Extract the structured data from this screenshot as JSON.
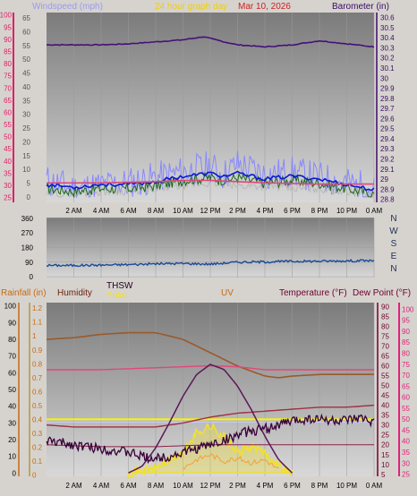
{
  "header": {
    "windspeed_label": "Windspeed (mph)",
    "graph_day_label": "24 hour graph day",
    "date_label": "Mar 10, 2026",
    "barometer_label": "Barometer (in)"
  },
  "colors": {
    "background": "#d6d3ce",
    "plot_top": "#7b7b7b",
    "plot_bottom": "#cfcfcf",
    "axis_pink": "#e0206a",
    "axis_purple": "#3a0a68",
    "axis_orange": "#c86a10",
    "axis_yellow_dark": "#a07800",
    "axis_maroon": "#6e0030",
    "axis_magenta": "#e0207a",
    "title_yellow": "#f0d000",
    "title_red": "#d02020",
    "wind_gust": "#8888ff",
    "wind_avg": "#0a1ad0",
    "wind_green": "#1b6a1b",
    "wind_gray": "#b8b8b8",
    "barometer": "#45107a",
    "temp_pink": "#e04878",
    "humidity": "#9a5a2a",
    "thsw": "#380038",
    "dewpoint": "#a03040",
    "uv": "#5a1858",
    "solar": "#f0e030",
    "rain": "#f8f800",
    "direction": "#1a4a9a",
    "text_dark": "#000000",
    "tick_text": "#ffffff"
  },
  "chart_data": [
    {
      "type": "line",
      "title": "24 hour graph day",
      "x_ticks": [
        "2 AM",
        "4 AM",
        "6 AM",
        "8 AM",
        "10 AM",
        "12 PM",
        "2 PM",
        "4 PM",
        "6 PM",
        "8 PM",
        "10 PM",
        "0 AM"
      ],
      "left_axis": {
        "label": "Windspeed (mph)",
        "ticks": [
          "25",
          "30",
          "35",
          "40",
          "45",
          "50",
          "55",
          "60",
          "65",
          "70",
          "75",
          "80",
          "85",
          "90",
          "95",
          "100"
        ],
        "ylim": [
          23,
          101
        ]
      },
      "left_axis_inner": {
        "ticks": [
          "0",
          "5",
          "10",
          "15",
          "20",
          "25",
          "30",
          "35",
          "40",
          "45",
          "50",
          "55",
          "60",
          "65"
        ],
        "ylim": [
          -2,
          67
        ]
      },
      "right_axis": {
        "label": "Barometer (in)",
        "ticks": [
          "28.8",
          "28.9",
          "29",
          "29.1",
          "29.2",
          "29.3",
          "29.4",
          "29.5",
          "29.6",
          "29.7",
          "29.8",
          "29.9",
          "30",
          "30.1",
          "30.2",
          "30.3",
          "30.4",
          "30.5",
          "30.6"
        ],
        "ylim": [
          28.77,
          30.65
        ]
      },
      "series": [
        {
          "name": "Barometer (in)",
          "axis": "right",
          "x": [
            0,
            2,
            4,
            6,
            8,
            10,
            11.5,
            13,
            14,
            16,
            18,
            20,
            22,
            24
          ],
          "values": [
            30.33,
            30.33,
            30.33,
            30.34,
            30.36,
            30.38,
            30.41,
            30.36,
            30.33,
            30.31,
            30.33,
            30.37,
            30.34,
            30.31
          ]
        },
        {
          "name": "temperature",
          "axis": "left",
          "x": [
            0,
            4,
            8,
            10,
            12,
            14,
            16,
            20,
            24
          ],
          "values": [
            31,
            31,
            31.5,
            32,
            32,
            31.5,
            31,
            30.5,
            30.5
          ]
        },
        {
          "x": [
            0,
            2,
            4,
            6,
            8,
            10,
            12,
            13,
            14,
            15,
            16,
            18,
            20,
            22,
            23,
            24
          ],
          "values": [
            6,
            3,
            4,
            5,
            7,
            9,
            11,
            8,
            12,
            10,
            8,
            9,
            7,
            5,
            4,
            2
          ]
        },
        {
          "x": [
            0,
            2,
            4,
            6,
            8,
            10,
            12,
            13,
            14,
            16,
            18,
            20,
            22,
            24
          ],
          "values": [
            3,
            2,
            3,
            3,
            4,
            6,
            7,
            6,
            7,
            5,
            6,
            5,
            3,
            1
          ]
        },
        {
          "x": [
            0,
            2,
            4,
            6,
            8,
            10,
            12,
            14,
            16,
            18,
            20,
            22,
            24
          ],
          "values": [
            1,
            1,
            2,
            2,
            3,
            4,
            5,
            4,
            4,
            3,
            3,
            2,
            1
          ]
        }
      ]
    },
    {
      "type": "line",
      "x_ticks": [
        "2 AM",
        "4 AM",
        "6 AM",
        "8 AM",
        "10 AM",
        "12 PM",
        "2 PM",
        "4 PM",
        "6 PM",
        "8 PM",
        "10 PM",
        "0 AM"
      ],
      "left_axis": {
        "ticks": [
          "0",
          "90",
          "180",
          "270",
          "360"
        ],
        "ylim": [
          -5,
          365
        ]
      },
      "right_labels": [
        "N",
        "W",
        "S",
        "E",
        "N"
      ],
      "series": [
        {
          "x": [
            0,
            2,
            4,
            6,
            8,
            10,
            12,
            14,
            16,
            18,
            20,
            22,
            24
          ],
          "values": [
            70,
            70,
            72,
            75,
            80,
            82,
            78,
            90,
            92,
            95,
            96,
            98,
            100
          ]
        }
      ]
    },
    {
      "type": "line",
      "x_ticks": [
        "2 AM",
        "4 AM",
        "6 AM",
        "8 AM",
        "10 AM",
        "12 PM",
        "2 PM",
        "4 PM",
        "6 PM",
        "8 PM",
        "10 PM",
        "0 AM"
      ],
      "titles": {
        "rainfall": "Rainfall (in)",
        "humidity": "Humidity",
        "thsw": "THSW",
        "solar": "Solar",
        "uv": "UV",
        "temperature": "Temperature (°F)",
        "dewpoint": "Dew Point (°F)"
      },
      "axis_humidity": {
        "ticks": [
          "0",
          "10",
          "20",
          "30",
          "40",
          "50",
          "60",
          "70",
          "80",
          "90",
          "100"
        ],
        "ylim": [
          -2,
          102
        ]
      },
      "axis_rain": {
        "ticks": [
          "0",
          "0.1",
          "0.2",
          "0.3",
          "0.4",
          "0.5",
          "0.6",
          "0.7",
          "0.8",
          "0.9",
          "1",
          "1.1",
          "1.2"
        ],
        "ylim": [
          -0.01,
          1.24
        ]
      },
      "axis_uv": {
        "ticks": [
          "0",
          "1",
          "2",
          "3",
          "4",
          "5",
          "6",
          "7",
          "8",
          "9"
        ],
        "ylim": [
          -0.2,
          10.2
        ]
      },
      "axis_temp": {
        "ticks": [
          "5",
          "10",
          "15",
          "20",
          "25",
          "30",
          "35",
          "40",
          "45",
          "50",
          "55",
          "60",
          "65",
          "70",
          "75",
          "80",
          "85",
          "90"
        ],
        "ylim": [
          4,
          92
        ]
      },
      "axis_dew": {
        "ticks": [
          "25",
          "30",
          "35",
          "40",
          "45",
          "50",
          "55",
          "60",
          "65",
          "70",
          "75",
          "80",
          "85",
          "90",
          "95",
          "100"
        ],
        "ylim": [
          24,
          103
        ]
      },
      "series": [
        {
          "name": "Humidity",
          "axis": "humidity",
          "x": [
            0,
            2,
            4,
            6,
            8,
            10,
            11,
            12,
            13,
            14,
            15,
            16,
            17,
            18,
            20,
            22,
            24
          ],
          "values": [
            80,
            81,
            83,
            84,
            84,
            80,
            76,
            72,
            68,
            64,
            61,
            58,
            57,
            58,
            59,
            59,
            59
          ]
        },
        {
          "name": "Temperature (°F)",
          "axis": "temp",
          "x": [
            0,
            2,
            4,
            6,
            8,
            10,
            12,
            14,
            16,
            18,
            20,
            22,
            24
          ],
          "values": [
            58,
            58,
            58,
            58.5,
            59,
            59.5,
            60,
            59.5,
            58,
            58,
            58,
            58,
            58
          ]
        },
        {
          "name": "Dew Point (°F)",
          "axis": "temp",
          "x": [
            0,
            2,
            4,
            6,
            8,
            10,
            12,
            14,
            16,
            18,
            20,
            22,
            24
          ],
          "values": [
            30,
            29,
            29,
            29,
            29,
            31,
            34,
            36,
            37,
            38,
            39,
            39,
            40
          ]
        },
        {
          "name": "THSW",
          "axis": "temp",
          "x": [
            0,
            1,
            2,
            3,
            4,
            5,
            6,
            7,
            8,
            9,
            10,
            11,
            12,
            13,
            14,
            15,
            16,
            17,
            18,
            19,
            20,
            21,
            22,
            23,
            24
          ],
          "values": [
            22,
            21,
            20,
            19,
            18,
            17,
            16,
            14,
            13,
            14,
            16,
            18,
            20,
            22,
            25,
            27,
            28,
            30,
            32,
            33,
            33,
            32,
            32,
            33,
            32
          ]
        },
        {
          "name": "UV",
          "axis": "uv",
          "x": [
            6,
            7,
            8,
            9,
            10,
            11,
            12,
            13,
            14,
            15,
            16,
            17,
            18
          ],
          "values": [
            0,
            0.4,
            1.5,
            3,
            4.6,
            5.9,
            6.5,
            6.2,
            5.2,
            3.8,
            2.2,
            0.8,
            0
          ]
        },
        {
          "name": "Solar",
          "axis": "uv",
          "x": [
            6,
            8,
            10,
            11,
            12,
            13,
            14,
            15,
            16,
            17,
            18
          ],
          "values": [
            0,
            0.3,
            1.2,
            2.4,
            2.8,
            2.2,
            1.2,
            1.6,
            1.2,
            0.5,
            0
          ]
        },
        {
          "name": "Rainfall (in)",
          "axis": "rain",
          "x": [
            0,
            24
          ],
          "values": [
            0.4,
            0.4
          ]
        },
        {
          "name": "Rainfall (in)",
          "axis": "rain",
          "x": [
            0,
            24
          ],
          "values": [
            0.38,
            0.38
          ]
        }
      ]
    }
  ]
}
